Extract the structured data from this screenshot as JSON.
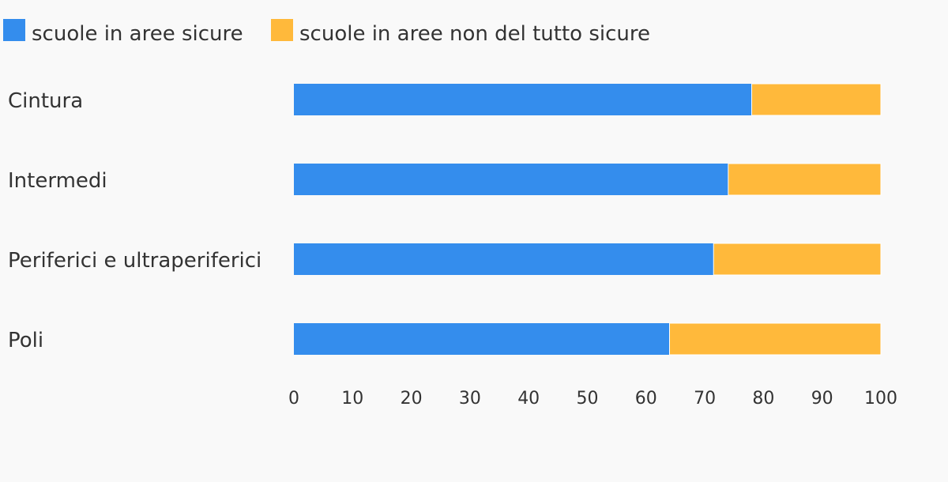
{
  "chart_data": {
    "type": "bar",
    "orientation": "horizontal",
    "stacked": true,
    "categories": [
      "Cintura",
      "Intermedi",
      "Periferici e ultraperiferici",
      "Poli"
    ],
    "series": [
      {
        "name": "scuole in aree sicure",
        "values": [
          78,
          74,
          71.5,
          64
        ],
        "color": "#348ded"
      },
      {
        "name": "scuole in aree non del tutto sicure",
        "values": [
          22,
          26,
          28.5,
          36
        ],
        "color": "#ffb93b"
      }
    ],
    "xlim": [
      0,
      100
    ],
    "xticks": [
      0,
      10,
      20,
      30,
      40,
      50,
      60,
      70,
      80,
      90,
      100
    ],
    "title": "",
    "xlabel": "",
    "ylabel": "",
    "grid": false,
    "legend_position": "top-left"
  }
}
